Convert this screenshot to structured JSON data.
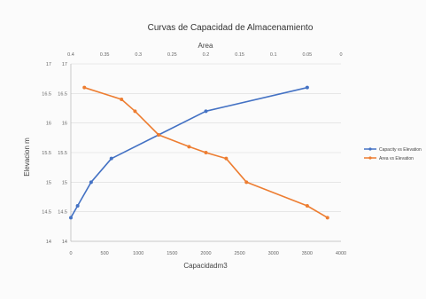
{
  "chart_data": {
    "type": "line",
    "title": "Curvas de Capacidad de Almacenamiento",
    "xlabel": "Capacidadm3",
    "x2label": "Area",
    "ylabel": "Elevacion m",
    "xlim": [
      0,
      4000
    ],
    "x2lim": [
      0.4,
      0
    ],
    "x2_reversed": true,
    "ylim": [
      14,
      17
    ],
    "x_ticks": [
      "0",
      "500",
      "1000",
      "1500",
      "2000",
      "2500",
      "3000",
      "3500",
      "4000"
    ],
    "x2_ticks": [
      "0.4",
      "0.35",
      "0.3",
      "0.25",
      "0.2",
      "0.15",
      "0.1",
      "0.05",
      "0"
    ],
    "y_ticks": [
      "14",
      "14.5",
      "15",
      "15.5",
      "16",
      "16.5",
      "17"
    ],
    "y_ticks_inner": [
      "14",
      "14.5",
      "15",
      "15.5",
      "16",
      "16.5",
      "17"
    ],
    "grid": true,
    "legend_position": "right",
    "series": [
      {
        "name": "Capacity vs Elevation",
        "axis": "bottom",
        "color": "#4472c4",
        "x": [
          0,
          100,
          300,
          600,
          1300,
          2000,
          3500
        ],
        "y": [
          14.4,
          14.6,
          15.0,
          15.4,
          15.8,
          16.2,
          16.6
        ]
      },
      {
        "name": "Area vs Elevation",
        "axis": "top",
        "color": "#ed7d31",
        "x": [
          0.38,
          0.325,
          0.305,
          0.27,
          0.225,
          0.2,
          0.17,
          0.14,
          0.05,
          0.02
        ],
        "y": [
          16.6,
          16.4,
          16.2,
          15.8,
          15.6,
          15.5,
          15.4,
          15.0,
          14.6,
          14.4
        ]
      }
    ]
  }
}
